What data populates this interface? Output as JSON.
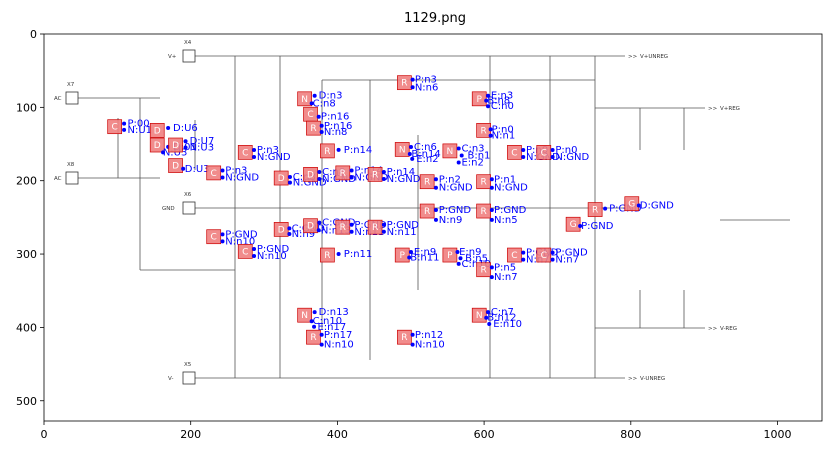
{
  "figure": {
    "title": "1129.png",
    "x_ticks": [
      "0",
      "200",
      "400",
      "600",
      "800",
      "1000"
    ],
    "y_ticks": [
      "0",
      "100",
      "200",
      "300",
      "400",
      "500"
    ]
  },
  "terminals": [
    {
      "name": "X4",
      "label": "V+",
      "net": "V+UNREG"
    },
    {
      "name": "X7",
      "label": "AC"
    },
    {
      "name": "X8",
      "label": "AC"
    },
    {
      "name": "X6",
      "label": "GND"
    },
    {
      "name": "X5",
      "label": "V-",
      "net": "V-UNREG"
    },
    {
      "net": "V+REG"
    },
    {
      "net": "V-REG"
    }
  ],
  "colors": {
    "component_box": "#f08080",
    "component_outline": "#cc0000",
    "annotation": "#0000ff"
  }
}
